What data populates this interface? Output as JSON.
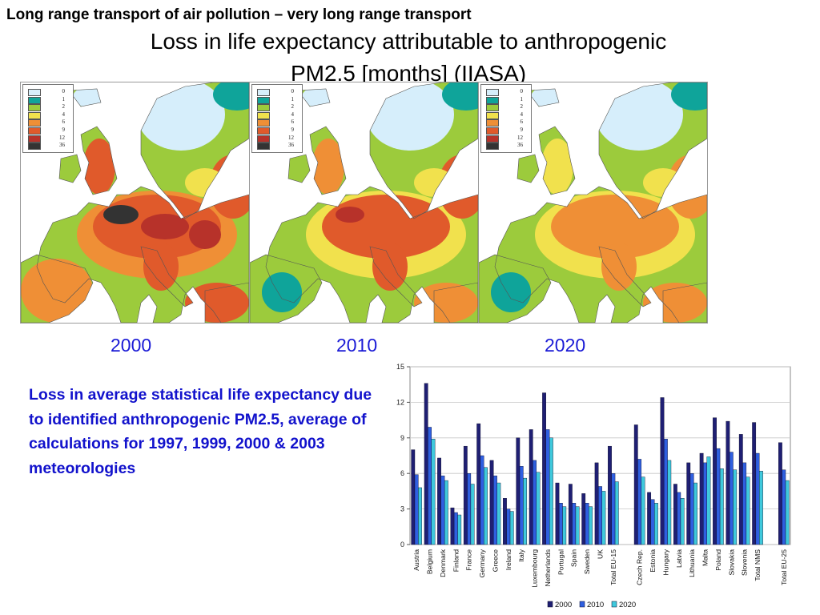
{
  "slide": {
    "top_title": "Long range transport of air pollution – very long range transport",
    "main_title_line1": "Loss in life expectancy attributable to anthropogenic",
    "main_title_line2": "PM2.5 [months] (IIASA)",
    "description": "Loss in average statistical life expectancy due to identified anthropogenic PM2.5, average of calculations for 1997, 1999, 2000 & 2003 meteorologies"
  },
  "maps": {
    "legend_levels": [
      "0",
      "1",
      "2",
      "4",
      "6",
      "9",
      "12",
      "36"
    ],
    "legend_colors": [
      "#d6eefb",
      "#0fa49a",
      "#9ccb3c",
      "#f1e14d",
      "#ef8f36",
      "#e05a2b",
      "#b7322a",
      "#333333"
    ],
    "panels": [
      {
        "year": "2000"
      },
      {
        "year": "2010"
      },
      {
        "year": "2020"
      }
    ]
  },
  "chart_data": {
    "type": "bar",
    "categories": [
      "Austria",
      "Belgium",
      "Denmark",
      "Finland",
      "France",
      "Germany",
      "Greece",
      "Ireland",
      "Italy",
      "Luxembourg",
      "Netherlands",
      "Portugal",
      "Spain",
      "Sweden",
      "UK",
      "Total EU-15",
      "",
      "Czech Rep.",
      "Estonia",
      "Hungary",
      "Latvia",
      "Lithuania",
      "Malta",
      "Poland",
      "Slovakia",
      "Slovenia",
      "Total NMS",
      "",
      "Total EU-25"
    ],
    "series": [
      {
        "name": "2000",
        "color": "#1f1f73",
        "values": [
          8.0,
          13.6,
          7.3,
          3.1,
          8.3,
          10.2,
          7.1,
          3.9,
          9.0,
          9.7,
          12.8,
          5.2,
          5.1,
          4.3,
          6.9,
          8.3,
          null,
          10.1,
          4.4,
          12.4,
          5.1,
          6.9,
          7.7,
          10.7,
          10.4,
          9.3,
          10.3,
          null,
          8.6
        ]
      },
      {
        "name": "2010",
        "color": "#2f5fe0",
        "values": [
          5.9,
          9.9,
          5.8,
          2.7,
          6.0,
          7.5,
          5.8,
          3.0,
          6.6,
          7.1,
          9.7,
          3.5,
          3.5,
          3.5,
          4.9,
          6.0,
          null,
          7.2,
          3.8,
          8.9,
          4.4,
          6.0,
          6.9,
          8.1,
          7.8,
          6.9,
          7.7,
          null,
          6.3
        ]
      },
      {
        "name": "2020",
        "color": "#3fc9dc",
        "values": [
          4.8,
          8.9,
          5.4,
          2.5,
          5.1,
          6.5,
          5.2,
          2.8,
          5.6,
          6.1,
          9.0,
          3.2,
          3.2,
          3.2,
          4.5,
          5.3,
          null,
          5.7,
          3.5,
          7.1,
          3.9,
          5.2,
          7.4,
          6.4,
          6.3,
          5.7,
          6.2,
          null,
          5.4
        ]
      }
    ],
    "ylim": [
      0,
      15
    ],
    "yticks": [
      0,
      3,
      6,
      9,
      12,
      15
    ],
    "grid": true,
    "legend_position": "bottom"
  }
}
